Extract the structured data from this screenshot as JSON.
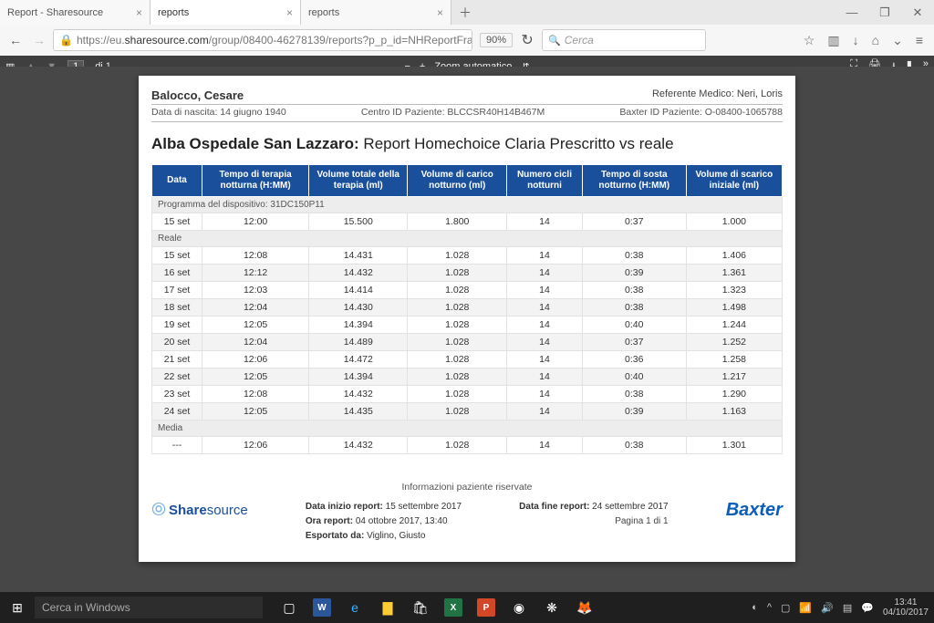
{
  "browser": {
    "tabs": [
      {
        "title": "Report - Sharesource"
      },
      {
        "title": "reports"
      },
      {
        "title": "reports"
      }
    ],
    "url_prefix": "https://eu.",
    "url_domain": "sharesource.com",
    "url_path": "/group/08400-46278139/reports?p_p_id=NHReportFrameworkPortlet_WAR_NHRepor",
    "zoom": "90%",
    "search_placeholder": "Cerca"
  },
  "pdf_toolbar": {
    "page_current": "1",
    "page_total": "di 1",
    "zoom_label": "Zoom automatico"
  },
  "report": {
    "patient_name": "Balocco, Cesare",
    "doctor_label": "Referente Medico: Neri, Loris",
    "dob": "Data di nascita: 14 giugno 1940",
    "centro_id": "Centro ID Paziente: BLCCSR40H14B467M",
    "baxter_id": "Baxter ID Paziente: O-08400-1065788",
    "title_bold": "Alba Ospedale San Lazzaro:",
    "title_rest": " Report Homechoice Claria Prescritto vs reale",
    "reserved": "Informazioni paziente riservate",
    "columns": [
      "Data",
      "Tempo di terapia notturna (H:MM)",
      "Volume  totale della terapia (ml)",
      "Volume di carico notturno (ml)",
      "Numero cicli notturni",
      "Tempo di sosta notturno (H:MM)",
      "Volume di scarico iniziale  (ml)"
    ],
    "section_program": "Programma del dispositivo: 31DC150P11",
    "program_row": [
      "15 set",
      "12:00",
      "15.500",
      "1.800",
      "14",
      "0:37",
      "1.000"
    ],
    "section_real": "Reale",
    "real_rows": [
      [
        "15 set",
        "12:08",
        "14.431",
        "1.028",
        "14",
        "0:38",
        "1.406"
      ],
      [
        "16 set",
        "12:12",
        "14.432",
        "1.028",
        "14",
        "0:39",
        "1.361"
      ],
      [
        "17 set",
        "12:03",
        "14.414",
        "1.028",
        "14",
        "0:38",
        "1.323"
      ],
      [
        "18 set",
        "12:04",
        "14.430",
        "1.028",
        "14",
        "0:38",
        "1.498"
      ],
      [
        "19 set",
        "12:05",
        "14.394",
        "1.028",
        "14",
        "0:40",
        "1.244"
      ],
      [
        "20 set",
        "12:04",
        "14.489",
        "1.028",
        "14",
        "0:37",
        "1.252"
      ],
      [
        "21 set",
        "12:06",
        "14.472",
        "1.028",
        "14",
        "0:36",
        "1.258"
      ],
      [
        "22 set",
        "12:05",
        "14.394",
        "1.028",
        "14",
        "0:40",
        "1.217"
      ],
      [
        "23 set",
        "12:08",
        "14.432",
        "1.028",
        "14",
        "0:38",
        "1.290"
      ],
      [
        "24 set",
        "12:05",
        "14.435",
        "1.028",
        "14",
        "0:39",
        "1.163"
      ]
    ],
    "section_media": "Media",
    "media_row": [
      "---",
      "12:06",
      "14.432",
      "1.028",
      "14",
      "0:38",
      "1.301"
    ]
  },
  "footer": {
    "start_label": "Data inizio report:",
    "start_value": " 15 settembre 2017",
    "end_label": "Data fine report:",
    "end_value": " 24 settembre 2017",
    "time_label": "Ora report:",
    "time_value": " 04 ottobre 2017, 13:40",
    "page_label": "Pagina 1 di 1",
    "exported_label": "Esportato da:",
    "exported_value": " Viglino, Giusto",
    "sharesource_1": "Share",
    "sharesource_2": "source",
    "baxter": "Baxter"
  },
  "taskbar": {
    "search_placeholder": "Cerca in Windows",
    "time": "13:41",
    "date": "04/10/2017"
  },
  "colors": {
    "header_bg": "#1a4f9c",
    "pdf_bg": "#474747",
    "taskbar_bg": "#1f1f1f",
    "baxter_blue": "#0d5eb8"
  }
}
